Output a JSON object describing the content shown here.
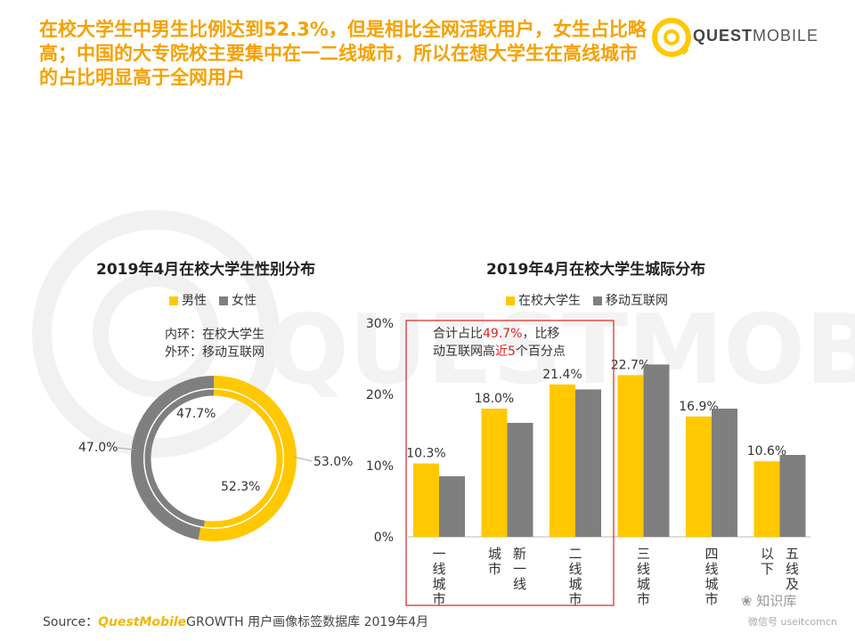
{
  "header": {
    "title": "在校大学生中男生比例达到52.3%，但是相比全网活跃用户，女生占比略高；中国的大专院校主要集中在一二线城市，所以在想大学生在高线城市的占比明显高于全网用户",
    "overlap_text": "高于"
  },
  "logo": {
    "text_bold": "QUEST",
    "text_light": "MOBILE",
    "watermark": "QUESTMOBILE"
  },
  "colors": {
    "yellow": "#FFC800",
    "gray": "#7F7F7F",
    "accent": "#f5a100",
    "red_box": "#e02020"
  },
  "chart_data": [
    {
      "type": "pie",
      "title": "2019年4月在校大学生性别分布",
      "legend": [
        "男性",
        "女性"
      ],
      "note_lines": [
        "内环：在校大学生",
        "外环：移动互联网"
      ],
      "series": [
        {
          "name": "在校大学生",
          "ring": "inner",
          "values": [
            52.3,
            47.7
          ],
          "labels": [
            "52.3%",
            "47.7%"
          ]
        },
        {
          "name": "移动互联网",
          "ring": "outer",
          "values": [
            53.0,
            47.0
          ],
          "labels": [
            "53.0%",
            "47.0%"
          ]
        }
      ]
    },
    {
      "type": "bar",
      "title": "2019年4月在校大学生城际分布",
      "legend": [
        "在校大学生",
        "移动互联网"
      ],
      "categories": [
        "一线城市",
        "新一线城市",
        "二线城市",
        "三线城市",
        "四线城市",
        "五线及以下"
      ],
      "category_display": [
        [
          "一线城市"
        ],
        [
          "城市",
          "新一线"
        ],
        [
          "二线城市"
        ],
        [
          "三线城市"
        ],
        [
          "四线城市"
        ],
        [
          "以下",
          "五线及"
        ]
      ],
      "series": [
        {
          "name": "在校大学生",
          "values": [
            10.3,
            18.0,
            21.4,
            22.7,
            16.9,
            10.6
          ],
          "labels": [
            "10.3%",
            "18.0%",
            "21.4%",
            "22.7%",
            "16.9%",
            "10.6%"
          ]
        },
        {
          "name": "移动互联网",
          "values": [
            8.5,
            16.0,
            20.7,
            24.2,
            18.0,
            11.5
          ]
        }
      ],
      "ylim": [
        0,
        30
      ],
      "yticks": [
        "0%",
        "10%",
        "20%",
        "30%"
      ],
      "annotation": {
        "line1_pre": "合计占比",
        "line1_hi": "49.7%",
        "line1_post": "，比移",
        "line2_pre": "动互联网高",
        "line2_hi": "近5",
        "line2_post": "个百分点"
      }
    }
  ],
  "footer": {
    "source_label": "Source：",
    "source_brand": "QuestMobile",
    "source_rest": "GROWTH 用户画像标签数据库  2019年4月",
    "wechat_name": "知识库",
    "wechat_sub": "微信号 useitcomcn"
  }
}
